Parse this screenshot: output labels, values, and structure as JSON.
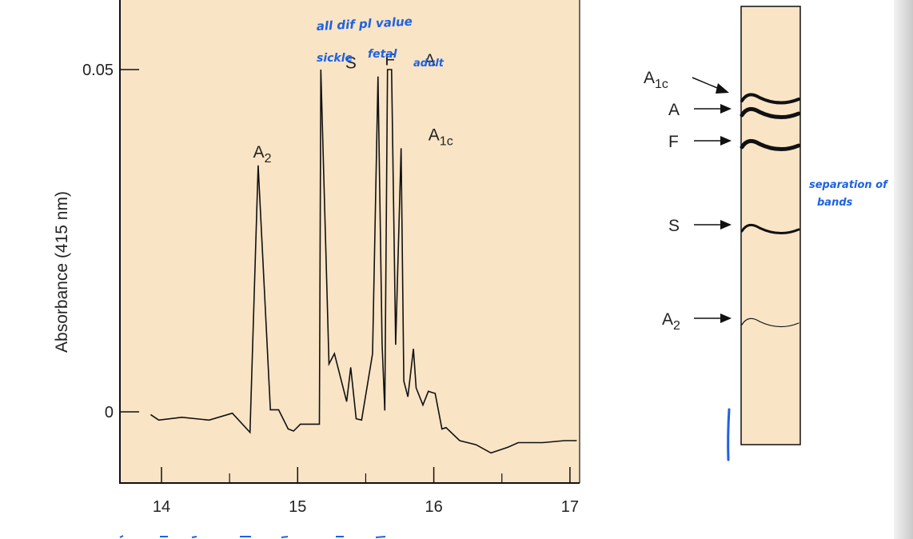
{
  "chart_data": [
    {
      "type": "line",
      "xlabel": "",
      "ylabel": "Absorbance (415 nm)",
      "xlim": [
        13.7,
        17.05
      ],
      "ylim": [
        -0.01,
        0.06
      ],
      "x_ticks": [
        "14",
        "15",
        "16",
        "17"
      ],
      "y_ticks": [
        "0",
        "0.05"
      ],
      "grid": false,
      "background_color": "#f9e4c6",
      "peak_labels": [
        {
          "label": "A",
          "sub": "2",
          "x": 14.72,
          "y": 0.036
        },
        {
          "label": "S",
          "sub": "",
          "x": 15.35,
          "y": 0.049
        },
        {
          "label": "F",
          "sub": "",
          "x": 15.64,
          "y": 0.0495
        },
        {
          "label": "A",
          "sub": "",
          "x": 15.93,
          "y": 0.0494
        },
        {
          "label": "A",
          "sub": "1c",
          "x": 15.96,
          "y": 0.0385
        }
      ],
      "series": [
        {
          "color": "#111111",
          "x": [
            13.92,
            13.98,
            14.15,
            14.35,
            14.52,
            14.65,
            14.71,
            14.8,
            14.86,
            14.93,
            14.97,
            15.02,
            15.16,
            15.17,
            15.23,
            15.27,
            15.36,
            15.39,
            15.43,
            15.47,
            15.55,
            15.59,
            15.62,
            15.64,
            15.66,
            15.69,
            15.72,
            15.76,
            15.78,
            15.81,
            15.85,
            15.87,
            15.92,
            15.96,
            15.99,
            16.01,
            16.06,
            16.09,
            16.19,
            16.31,
            16.42,
            16.54,
            16.62,
            16.72,
            16.8,
            16.96,
            17.05
          ],
          "y": [
            -0.0004,
            -0.0012,
            -0.0008,
            -0.0012,
            -0.0002,
            -0.003,
            0.036,
            0.0003,
            0.0003,
            -0.0025,
            -0.0028,
            -0.0018,
            -0.0018,
            0.05,
            0.007,
            0.0085,
            0.0015,
            0.0065,
            -0.001,
            -0.0012,
            0.0085,
            0.049,
            0.01,
            0.0002,
            0.05,
            0.05,
            0.0098,
            0.0385,
            0.0045,
            0.0022,
            0.0092,
            0.0035,
            0.001,
            0.003,
            0.0028,
            0.0027,
            -0.0025,
            -0.0023,
            -0.0042,
            -0.0048,
            -0.006,
            -0.0052,
            -0.0045,
            -0.0045,
            -0.0045,
            -0.0042,
            -0.0042
          ]
        }
      ]
    },
    {
      "type": "gel",
      "background_color": "#f9e4c6",
      "bands": [
        {
          "label": "A",
          "sub": "1c",
          "weight": 4
        },
        {
          "label": "A",
          "sub": "",
          "weight": 5
        },
        {
          "label": "F",
          "sub": "",
          "weight": 5
        },
        {
          "label": "S",
          "sub": "",
          "weight": 3
        },
        {
          "label": "A",
          "sub": "2",
          "weight": 1.2
        }
      ]
    }
  ],
  "annotations": {
    "top": "all dif pl value",
    "sickle": "sickle",
    "fetal": "fetal",
    "adult": "adult",
    "separation": "separation of",
    "separation_line2": "bands"
  }
}
